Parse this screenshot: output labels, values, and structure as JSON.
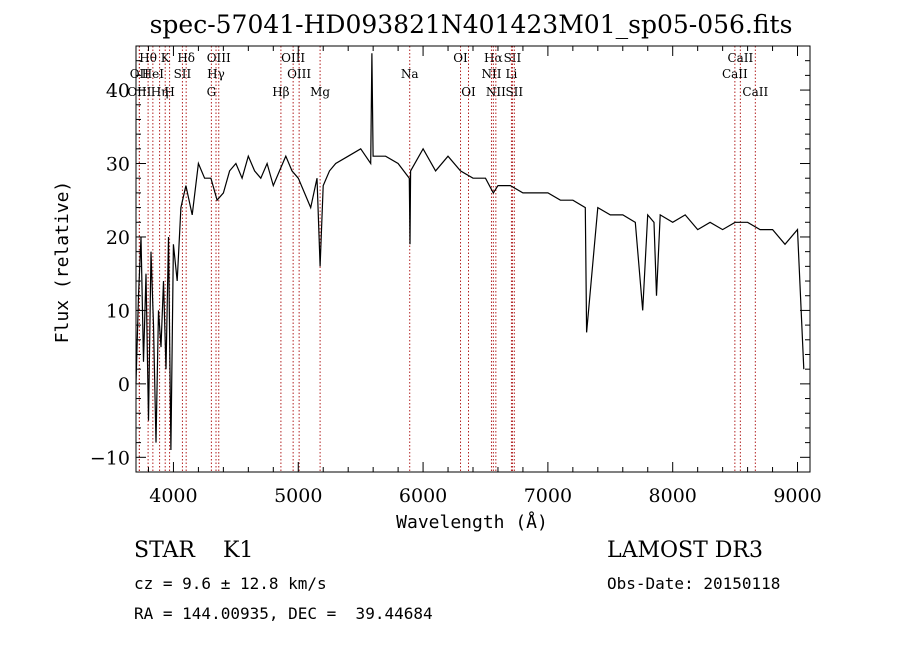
{
  "chart_data": {
    "type": "line",
    "title": "spec-57041-HD093821N401423M01_sp05-056.fits",
    "xlabel": "Wavelength (Å)",
    "ylabel": "Flux (relative)",
    "xlim": [
      3700,
      9100
    ],
    "ylim": [
      -12,
      46
    ],
    "x_ticks": [
      4000,
      5000,
      6000,
      7000,
      8000,
      9000
    ],
    "x_tick_labels": [
      "4000",
      "5000",
      "6000",
      "7000",
      "8000",
      "9000"
    ],
    "y_ticks": [
      -10,
      0,
      10,
      20,
      30,
      40
    ],
    "y_tick_labels": [
      "−10",
      "0",
      "10",
      "20",
      "30",
      "40"
    ],
    "grid": false,
    "series": [
      {
        "x": [
          3700,
          3720,
          3740,
          3760,
          3780,
          3800,
          3820,
          3840,
          3860,
          3880,
          3900,
          3920,
          3940,
          3960,
          3980,
          4000,
          4030,
          4060,
          4100,
          4150,
          4200,
          4250,
          4300,
          4350,
          4400,
          4450,
          4500,
          4550,
          4600,
          4650,
          4700,
          4750,
          4800,
          4850,
          4900,
          4950,
          5000,
          5050,
          5100,
          5150,
          5175,
          5200,
          5250,
          5300,
          5400,
          5500,
          5580,
          5590,
          5600,
          5700,
          5800,
          5890,
          5895,
          5900,
          6000,
          6100,
          6200,
          6300,
          6400,
          6500,
          6563,
          6600,
          6700,
          6800,
          6900,
          7000,
          7100,
          7200,
          7300,
          7310,
          7400,
          7500,
          7600,
          7700,
          7760,
          7800,
          7850,
          7870,
          7900,
          8000,
          8100,
          8200,
          8300,
          8400,
          8500,
          8600,
          8700,
          8800,
          8900,
          9000,
          9050
        ],
        "y": [
          0,
          12,
          20,
          3,
          15,
          -5,
          18,
          8,
          -8,
          10,
          5,
          14,
          2,
          20,
          -9,
          19,
          14,
          24,
          27,
          23,
          30,
          28,
          28,
          25,
          26,
          29,
          30,
          28,
          31,
          29,
          28,
          30,
          27,
          29,
          31,
          29,
          28,
          26,
          24,
          28,
          16,
          27,
          29,
          30,
          31,
          32,
          30,
          45,
          31,
          31,
          30,
          28,
          19,
          29,
          32,
          29,
          31,
          29,
          28,
          28,
          26,
          27,
          27,
          26,
          26,
          26,
          25,
          25,
          24,
          7,
          24,
          23,
          23,
          22,
          10,
          23,
          22,
          12,
          23,
          22,
          23,
          21,
          22,
          21,
          22,
          22,
          21,
          21,
          19,
          21,
          2
        ],
        "color": "#000000"
      }
    ],
    "line_markers": [
      {
        "label": "Hθ",
        "x": 3797,
        "row": 1
      },
      {
        "label": "OII",
        "x": 3727,
        "row": 2
      },
      {
        "label": "OIII",
        "x": 3727,
        "row": 3
      },
      {
        "label": "HeI",
        "x": 3835,
        "row": 2
      },
      {
        "label": "Hη",
        "x": 3889,
        "row": 3
      },
      {
        "label": "K",
        "x": 3934,
        "row": 1
      },
      {
        "label": "H",
        "x": 3969,
        "row": 3
      },
      {
        "label": "SII",
        "x": 4072,
        "row": 2
      },
      {
        "label": "Hδ",
        "x": 4102,
        "row": 1
      },
      {
        "label": "OIII",
        "x": 4363,
        "row": 1
      },
      {
        "label": "Hγ",
        "x": 4341,
        "row": 2
      },
      {
        "label": "G",
        "x": 4304,
        "row": 3
      },
      {
        "label": "OIII",
        "x": 4959,
        "row": 1
      },
      {
        "label": "OIII",
        "x": 5007,
        "row": 2
      },
      {
        "label": "Hβ",
        "x": 4861,
        "row": 3
      },
      {
        "label": "Mg",
        "x": 5175,
        "row": 3
      },
      {
        "label": "Na",
        "x": 5893,
        "row": 2
      },
      {
        "label": "OI",
        "x": 6300,
        "row": 1
      },
      {
        "label": "OI",
        "x": 6364,
        "row": 3
      },
      {
        "label": "Hα",
        "x": 6563,
        "row": 1
      },
      {
        "label": "SII",
        "x": 6716,
        "row": 1
      },
      {
        "label": "NII",
        "x": 6548,
        "row": 2
      },
      {
        "label": "Li",
        "x": 6708,
        "row": 2
      },
      {
        "label": "NII",
        "x": 6583,
        "row": 3
      },
      {
        "label": "SII",
        "x": 6731,
        "row": 3
      },
      {
        "label": "CaII",
        "x": 8542,
        "row": 1
      },
      {
        "label": "CaII",
        "x": 8498,
        "row": 2
      },
      {
        "label": "CaII",
        "x": 8662,
        "row": 3
      }
    ]
  },
  "info": {
    "class": "STAR    K1",
    "survey": "LAMOST DR3",
    "cz": "cz = 9.6 ± 12.8 km/s",
    "obs_date": "Obs-Date: 20150118",
    "radec": "RA = 144.00935, DEC =  39.44684"
  }
}
